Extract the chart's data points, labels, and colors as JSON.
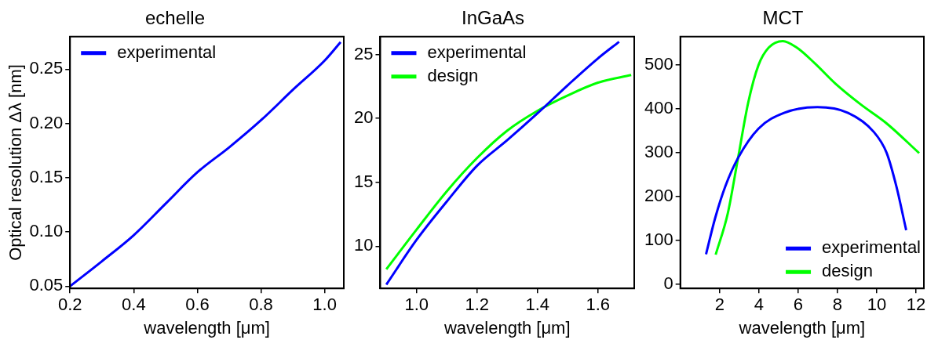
{
  "chart_data": [
    {
      "type": "line",
      "title": "echelle",
      "xlabel": "wavelength [μm]",
      "ylabel": "Optical resolution Δλ [nm]",
      "xlim": [
        0.2,
        1.06
      ],
      "ylim": [
        0.048,
        0.28
      ],
      "xticks": [
        0.2,
        0.4,
        0.6,
        0.8,
        {
          "value": 1.0,
          "label": "1.0"
        }
      ],
      "yticks": [
        0.05,
        {
          "value": 0.1,
          "label": "0.10"
        },
        0.15,
        {
          "value": 0.2,
          "label": "0.20"
        },
        0.25
      ],
      "legend": "top left",
      "marker": "none",
      "series": [
        {
          "name": "experimental",
          "color": "#0000ff",
          "x": [
            0.2,
            0.3,
            0.4,
            0.5,
            0.6,
            0.7,
            0.8,
            0.9,
            1.0,
            1.05
          ],
          "values": [
            0.05,
            0.073,
            0.097,
            0.126,
            0.155,
            0.178,
            0.203,
            0.231,
            0.258,
            0.275
          ]
        }
      ]
    },
    {
      "type": "line",
      "title": "InGaAs",
      "xlabel": "wavelength [μm]",
      "xlim": [
        0.88,
        1.72
      ],
      "ylim": [
        6.7,
        26.4
      ],
      "xticks": [
        {
          "value": 1.0,
          "label": "1.0"
        },
        1.2,
        1.4,
        1.6
      ],
      "yticks": [
        10,
        15,
        20,
        25
      ],
      "legend": "top left",
      "marker": "none",
      "series": [
        {
          "name": "experimental",
          "color": "#0000ff",
          "x": [
            0.9,
            1.0,
            1.1,
            1.2,
            1.3,
            1.4,
            1.5,
            1.6,
            1.67
          ],
          "values": [
            7.0,
            10.5,
            13.5,
            16.3,
            18.3,
            20.4,
            22.6,
            24.7,
            26.0
          ]
        },
        {
          "name": "design",
          "color": "#00ff00",
          "x": [
            0.9,
            1.0,
            1.1,
            1.2,
            1.3,
            1.4,
            1.5,
            1.6,
            1.71
          ],
          "values": [
            8.2,
            11.3,
            14.3,
            16.9,
            19.05,
            20.6,
            21.8,
            22.8,
            23.4
          ]
        }
      ]
    },
    {
      "type": "line",
      "title": "MCT",
      "xlabel": "wavelength [μm]",
      "xlim": [
        0,
        12.4
      ],
      "ylim": [
        -10,
        565
      ],
      "xticks": [
        2,
        4,
        6,
        8,
        10,
        12
      ],
      "yticks": [
        0,
        100,
        200,
        300,
        400,
        500
      ],
      "legend": "bottom right",
      "marker": "none",
      "series": [
        {
          "name": "experimental",
          "color": "#0000ff",
          "x": [
            1.31,
            1.77,
            2.29,
            2.94,
            3.98,
            5.28,
            6.98,
            8.54,
            9.84,
            10.5,
            11.0,
            11.5
          ],
          "values": [
            68,
            150,
            223,
            288,
            355,
            391,
            404,
            391,
            348,
            300,
            223,
            123
          ]
        },
        {
          "name": "design",
          "color": "#00ff00",
          "x": [
            1.8,
            2.42,
            2.94,
            3.46,
            3.98,
            4.5,
            5.22,
            5.93,
            6.85,
            7.89,
            9.19,
            10.5,
            12.16
          ],
          "values": [
            67,
            162,
            288,
            415,
            500,
            540,
            555,
            540,
            504,
            458,
            410,
            367,
            299
          ]
        }
      ]
    }
  ]
}
